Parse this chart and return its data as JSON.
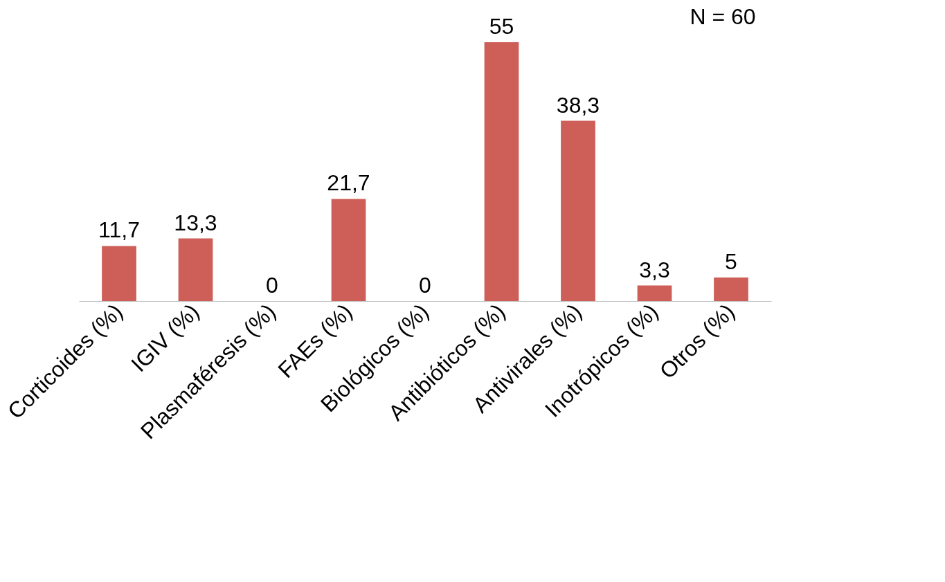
{
  "chart_data": {
    "type": "bar",
    "categories": [
      "Corticoides (%)",
      "IGIV (%)",
      "Plasmaféresis (%)",
      "FAEs (%)",
      "Biológicos (%)",
      "Antibióticos (%)",
      "Antivirales (%)",
      "Inotrópicos (%)",
      "Otros (%)"
    ],
    "values": [
      11.7,
      13.3,
      0,
      21.7,
      0,
      55,
      38.3,
      3.3,
      5
    ],
    "value_labels": [
      "11,7",
      "13,3",
      "0",
      "21,7",
      "0",
      "55",
      "38,3",
      "3,3",
      "5"
    ],
    "color": "#cd5f58",
    "annotations": [
      "N = 60"
    ]
  }
}
